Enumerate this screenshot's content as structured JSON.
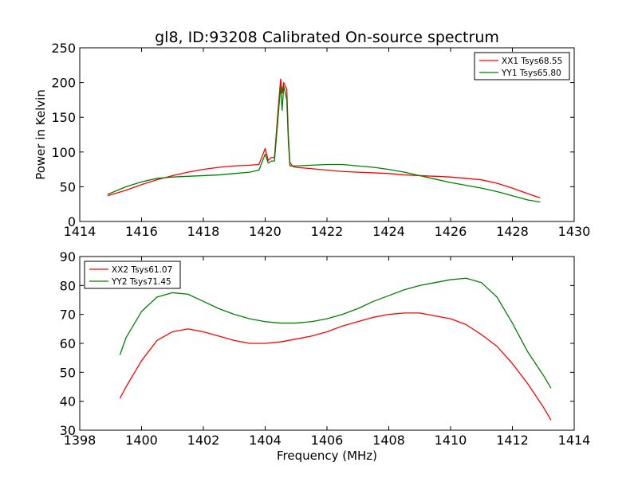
{
  "chart_data": [
    {
      "type": "line",
      "title": "gl8, ID:93208 Calibrated On-source spectrum",
      "xlabel": "",
      "ylabel": "Power in Kelvin",
      "xlim": [
        1414,
        1430
      ],
      "ylim": [
        0,
        250
      ],
      "xticks": [
        1414,
        1416,
        1418,
        1420,
        1422,
        1424,
        1426,
        1428,
        1430
      ],
      "yticks": [
        0,
        50,
        100,
        150,
        200,
        250
      ],
      "grid": false,
      "legend_position": "top-right",
      "series": [
        {
          "name": "XX1 Tsys68.55",
          "color": "#ff0000",
          "x": [
            1414.9,
            1415.5,
            1416.0,
            1416.5,
            1417.0,
            1417.5,
            1418.0,
            1418.5,
            1419.0,
            1419.5,
            1419.8,
            1420.0,
            1420.1,
            1420.2,
            1420.3,
            1420.4,
            1420.5,
            1420.55,
            1420.6,
            1420.7,
            1420.75,
            1420.8,
            1420.9,
            1421.0,
            1421.5,
            1422.0,
            1422.5,
            1423.0,
            1423.5,
            1424.0,
            1424.5,
            1425.0,
            1425.5,
            1426.0,
            1426.5,
            1427.0,
            1427.5,
            1428.0,
            1428.5,
            1428.9
          ],
          "y": [
            37,
            45,
            53,
            60,
            66,
            71,
            75,
            78,
            80,
            81,
            82,
            105,
            88,
            92,
            92,
            150,
            205,
            185,
            200,
            190,
            125,
            85,
            79,
            78,
            76,
            74,
            72,
            71,
            70,
            69,
            67,
            66,
            65,
            64,
            62,
            60,
            55,
            48,
            40,
            34
          ]
        },
        {
          "name": "YY1 Tsys65.80",
          "color": "#008000",
          "x": [
            1414.9,
            1415.5,
            1416.0,
            1416.5,
            1417.0,
            1417.5,
            1418.0,
            1418.5,
            1419.0,
            1419.5,
            1419.8,
            1420.0,
            1420.1,
            1420.2,
            1420.3,
            1420.4,
            1420.5,
            1420.55,
            1420.6,
            1420.7,
            1420.75,
            1420.8,
            1420.9,
            1421.0,
            1421.5,
            1422.0,
            1422.5,
            1423.0,
            1423.5,
            1424.0,
            1424.5,
            1425.0,
            1425.5,
            1426.0,
            1426.5,
            1427.0,
            1427.5,
            1428.0,
            1428.5,
            1428.9
          ],
          "y": [
            39,
            50,
            57,
            62,
            64,
            65,
            66,
            67,
            69,
            71,
            74,
            97,
            84,
            87,
            87,
            140,
            195,
            160,
            195,
            175,
            115,
            80,
            80,
            80,
            81,
            82,
            82,
            80,
            78,
            75,
            71,
            66,
            61,
            56,
            52,
            48,
            43,
            37,
            31,
            28
          ]
        }
      ]
    },
    {
      "type": "line",
      "title": "",
      "xlabel": "Frequency (MHz)",
      "ylabel": "",
      "xlim": [
        1398,
        1414
      ],
      "ylim": [
        30,
        90
      ],
      "xticks": [
        1398,
        1400,
        1402,
        1404,
        1406,
        1408,
        1410,
        1412,
        1414
      ],
      "yticks": [
        30,
        40,
        50,
        60,
        70,
        80,
        90
      ],
      "grid": false,
      "legend_position": "top-left",
      "series": [
        {
          "name": "XX2 Tsys61.07",
          "color": "#ff0000",
          "x": [
            1399.3,
            1399.5,
            1400.0,
            1400.5,
            1401.0,
            1401.5,
            1402.0,
            1402.5,
            1403.0,
            1403.5,
            1404.0,
            1404.5,
            1405.0,
            1405.5,
            1406.0,
            1406.5,
            1407.0,
            1407.5,
            1408.0,
            1408.5,
            1409.0,
            1409.5,
            1410.0,
            1410.5,
            1411.0,
            1411.5,
            1412.0,
            1412.5,
            1413.0,
            1413.25
          ],
          "y": [
            41,
            45,
            54,
            61,
            64,
            65,
            64,
            62.5,
            61,
            60,
            60,
            60.5,
            61.5,
            62.5,
            64,
            66,
            67.5,
            69,
            70,
            70.5,
            70.5,
            69.5,
            68.5,
            66.5,
            63,
            59,
            53,
            46,
            38,
            33.5
          ]
        },
        {
          "name": "YY2 Tsys71.45",
          "color": "#008000",
          "x": [
            1399.3,
            1399.5,
            1400.0,
            1400.5,
            1401.0,
            1401.5,
            1402.0,
            1402.5,
            1403.0,
            1403.5,
            1404.0,
            1404.5,
            1405.0,
            1405.5,
            1406.0,
            1406.5,
            1407.0,
            1407.5,
            1408.0,
            1408.5,
            1409.0,
            1409.5,
            1410.0,
            1410.5,
            1411.0,
            1411.5,
            1412.0,
            1412.5,
            1413.0,
            1413.25
          ],
          "y": [
            56,
            62,
            71,
            76,
            77.5,
            77,
            74.5,
            72,
            70,
            68.5,
            67.5,
            67,
            67,
            67.5,
            68.5,
            70,
            72,
            74.5,
            76.5,
            78.5,
            80,
            81,
            82,
            82.5,
            81,
            76,
            67,
            57,
            49,
            44.5
          ]
        }
      ]
    }
  ]
}
